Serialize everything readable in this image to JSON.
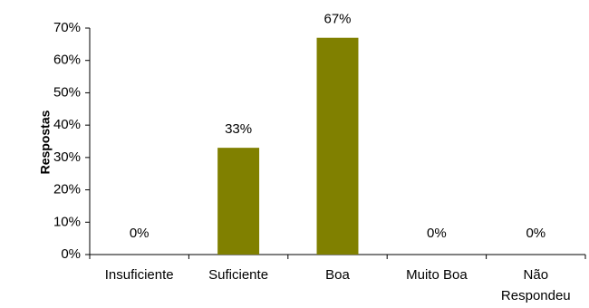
{
  "chart_data": {
    "type": "bar",
    "title": "",
    "xlabel": "",
    "ylabel": "Respostas",
    "categories": [
      "Insuficiente",
      "Suficiente",
      "Boa",
      "Muito Boa",
      "Não Respondeu"
    ],
    "values": [
      0,
      33,
      67,
      0,
      0
    ],
    "data_labels": [
      "0%",
      "33%",
      "67%",
      "0%",
      "0%"
    ],
    "ylim": [
      0,
      70
    ],
    "yticks": [
      0,
      10,
      20,
      30,
      40,
      50,
      60,
      70
    ],
    "ytick_labels": [
      "0%",
      "10%",
      "20%",
      "30%",
      "40%",
      "50%",
      "60%",
      "70%"
    ],
    "grid": false,
    "legend": "none",
    "bar_color": "#808000"
  }
}
